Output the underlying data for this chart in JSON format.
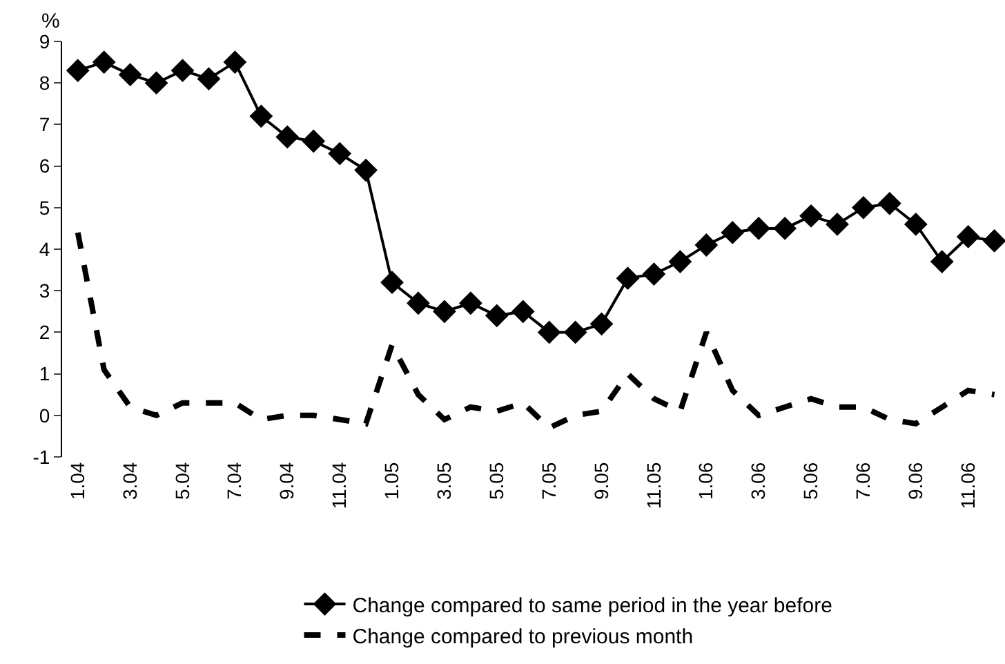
{
  "chart_data": {
    "type": "line",
    "ylabel": "%",
    "categories": [
      "1.04",
      null,
      "3.04",
      null,
      "5.04",
      null,
      "7.04",
      null,
      "9.04",
      null,
      "11.04",
      null,
      "1.05",
      null,
      "3.05",
      null,
      "5.05",
      null,
      "7.05",
      null,
      "9.05",
      null,
      "11.05",
      null,
      "1.06",
      null,
      "3.06",
      null,
      "5.06",
      null,
      "7.06",
      null,
      "9.06",
      null,
      "11.06",
      null
    ],
    "series": [
      {
        "name": "Change compared to same period in the year before",
        "color": "#000000",
        "marker": "diamond",
        "line_style": "solid",
        "values": [
          8.3,
          8.5,
          8.2,
          8.0,
          8.3,
          8.1,
          8.5,
          7.2,
          6.7,
          6.6,
          6.3,
          5.9,
          3.2,
          2.7,
          2.5,
          2.7,
          2.4,
          2.5,
          2.0,
          2.0,
          2.2,
          3.3,
          3.4,
          3.7,
          4.1,
          4.4,
          4.5,
          4.5,
          4.8,
          4.6,
          5.0,
          5.1,
          4.6,
          3.7,
          4.3,
          4.2
        ]
      },
      {
        "name": "Change compared to previous month",
        "color": "#000000",
        "marker": "none",
        "line_style": "dashed",
        "values": [
          4.4,
          1.1,
          0.2,
          0.0,
          0.3,
          0.3,
          0.3,
          -0.1,
          0.0,
          0.0,
          -0.1,
          -0.2,
          1.7,
          0.5,
          -0.1,
          0.2,
          0.1,
          0.3,
          -0.3,
          0.0,
          0.1,
          1.0,
          0.4,
          0.1,
          2.0,
          0.6,
          0.0,
          0.2,
          0.4,
          0.2,
          0.2,
          -0.1,
          -0.2,
          0.2,
          0.6,
          0.5
        ]
      }
    ],
    "ylim": [
      -1,
      9
    ],
    "yticks": [
      -1,
      0,
      1,
      2,
      3,
      4,
      5,
      6,
      7,
      8,
      9
    ],
    "grid": false,
    "legend": "bottom"
  }
}
